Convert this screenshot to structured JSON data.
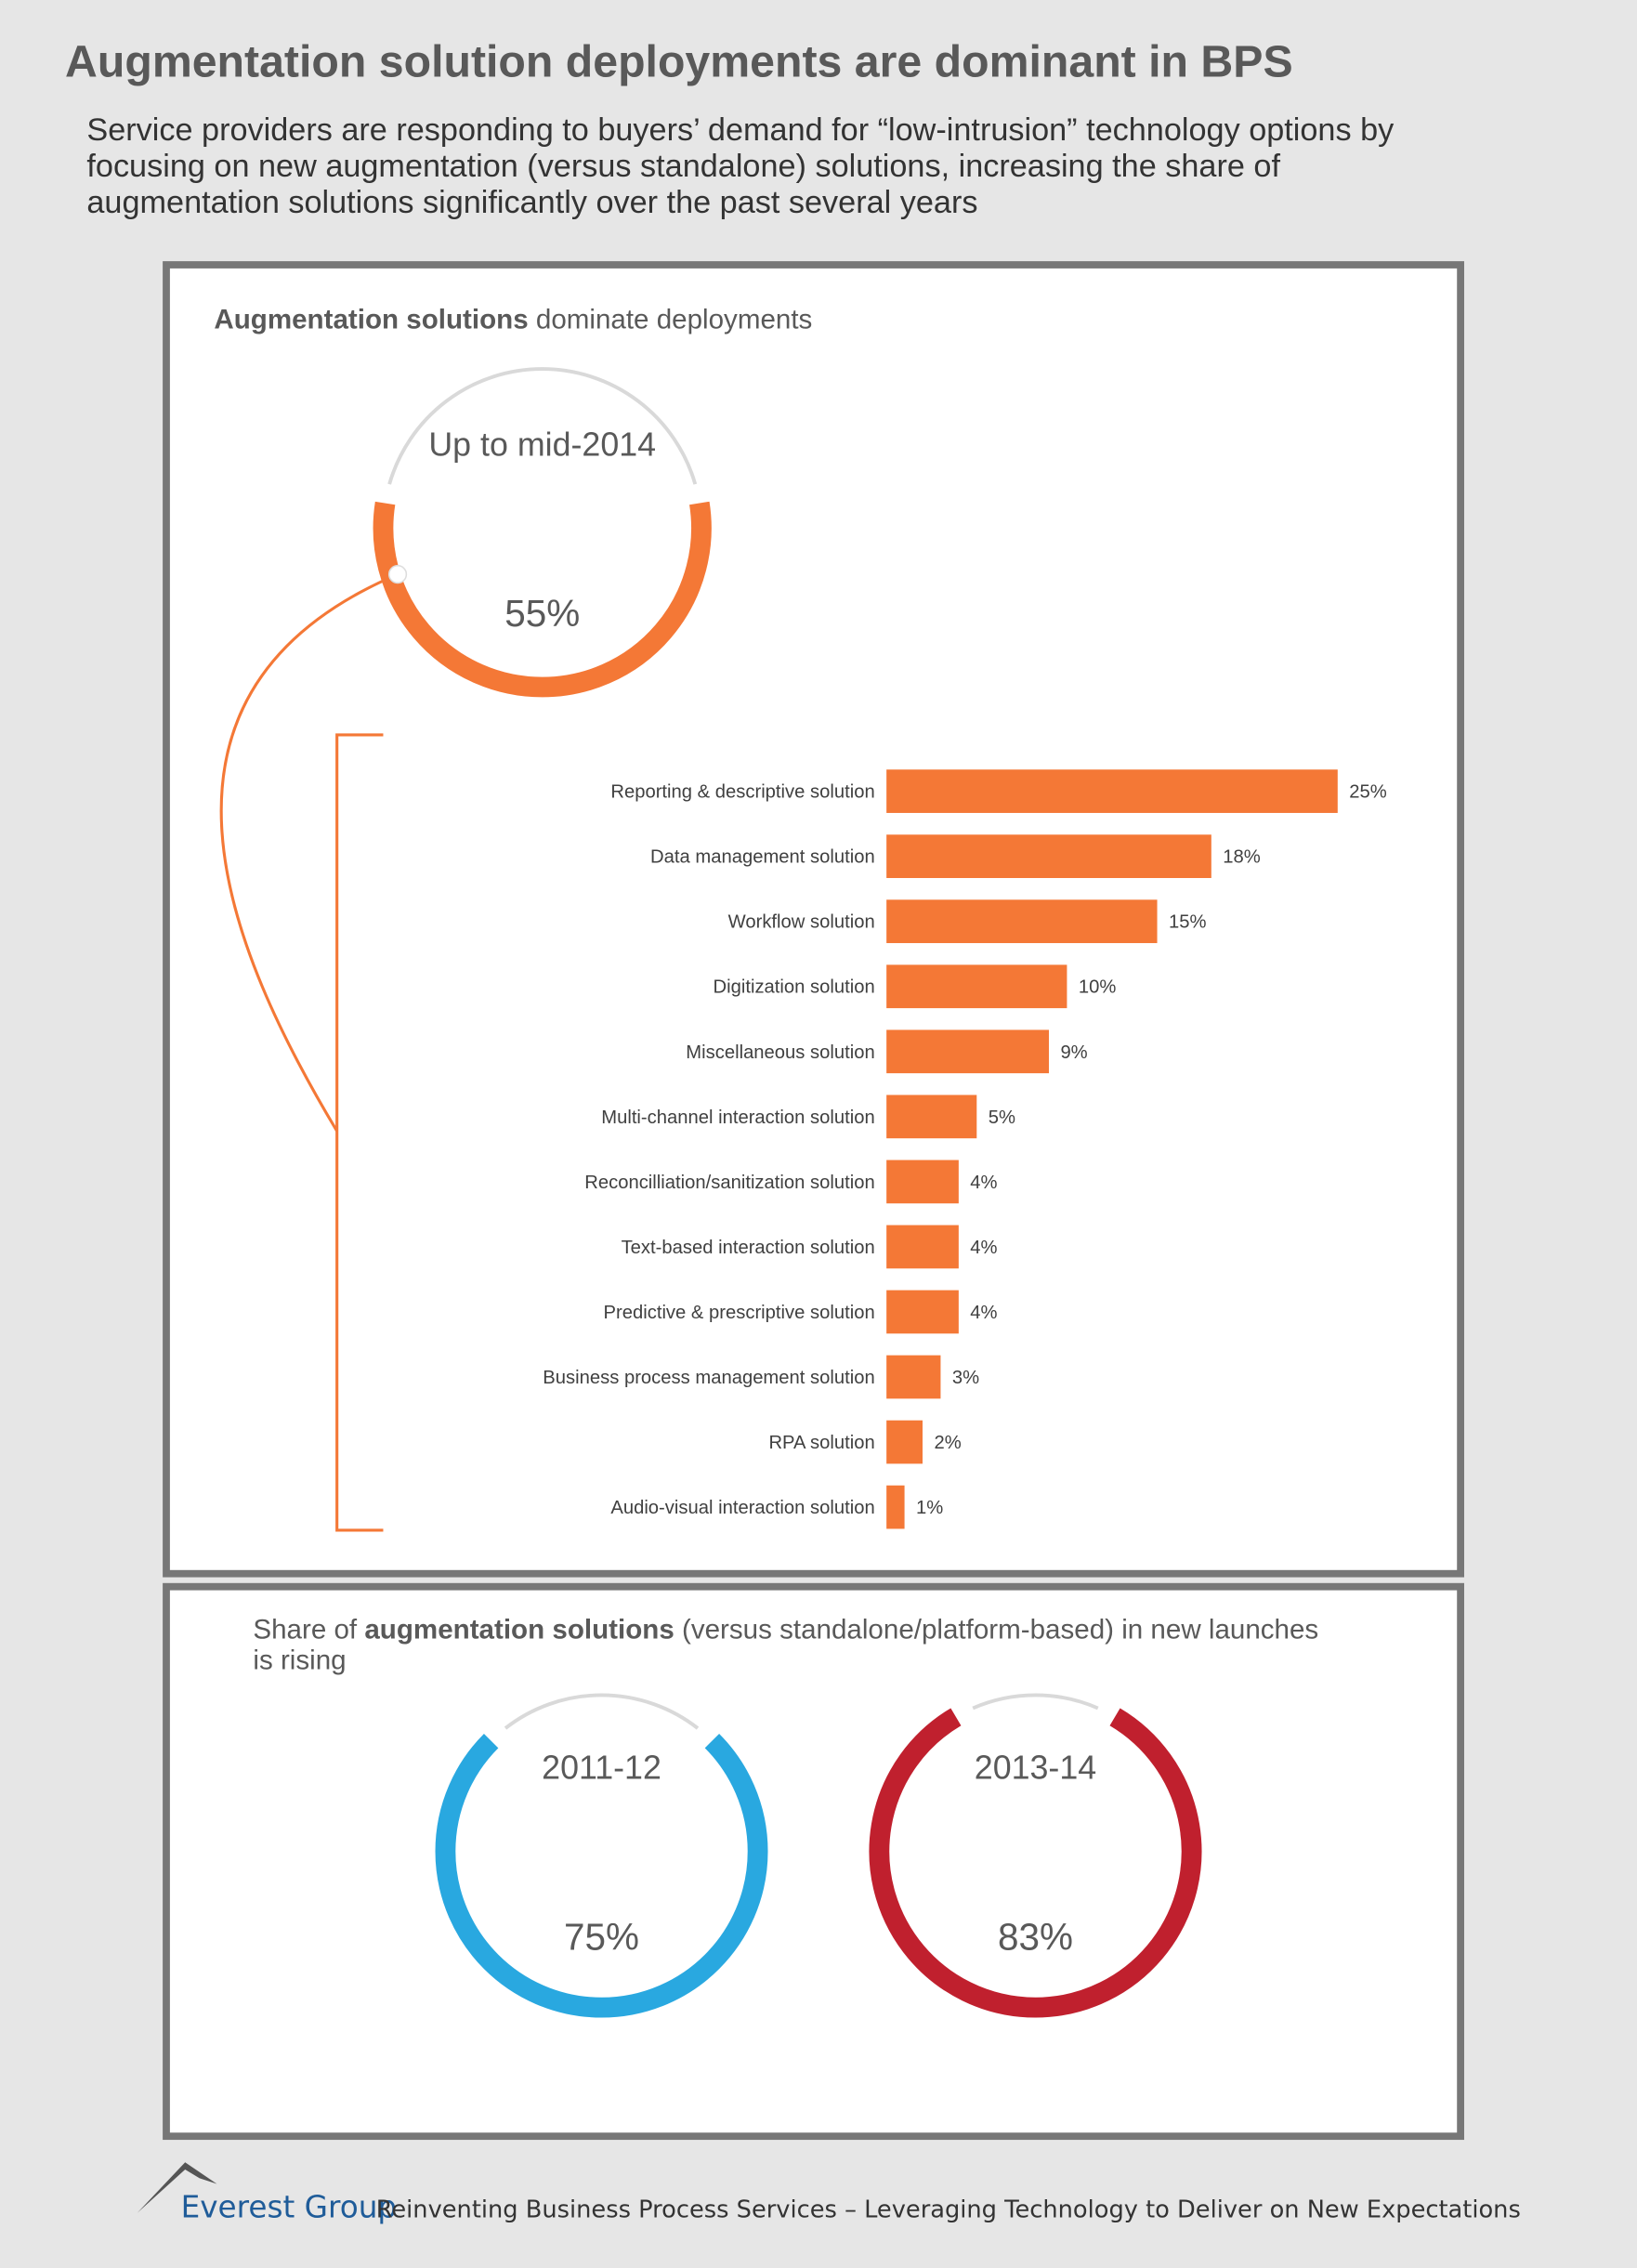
{
  "title": "Augmentation solution deployments are dominant in BPS",
  "subtitle": [
    "Service providers are responding to buyers’ demand for “low-intrusion” technology options by",
    "focusing on new augmentation (versus standalone) solutions, increasing the share of",
    "augmentation solutions significantly over the past several years"
  ],
  "panels": [
    {
      "title": [
        "Augmentation solutions",
        " dominate deployments"
      ]
    },
    {
      "title": [
        "Share of ",
        "augmentation solutions",
        " (versus standalone/platform-based) in new launches",
        "is rising"
      ]
    }
  ],
  "footer": {
    "brand": "Everest Group",
    "text": "Reinventing Business Process Services – Leveraging Technology to Deliver on New Expectations"
  },
  "chart_data": [
    {
      "type": "donut",
      "label": "Up to mid-2014",
      "value": 55,
      "value_label": "55%",
      "color": "#f47836"
    },
    {
      "type": "hbar",
      "categories": [
        "Reporting & descriptive solution",
        "Data management solution",
        "Workflow solution",
        "Digitization solution",
        "Miscellaneous solution",
        "Multi-channel interaction solution",
        "Reconcilliation/sanitization solution",
        "Text-based interaction solution",
        "Predictive & prescriptive solution",
        "Business process management solution",
        "RPA solution",
        "Audio-visual interaction solution"
      ],
      "values": [
        25,
        18,
        15,
        10,
        9,
        5,
        4,
        4,
        4,
        3,
        2,
        1
      ],
      "value_labels": [
        "25%",
        "18%",
        "15%",
        "10%",
        "9%",
        "5%",
        "4%",
        "4%",
        "4%",
        "3%",
        "2%",
        "1%"
      ],
      "color": "#f47836"
    },
    {
      "type": "donut",
      "label": "2011-12",
      "value": 75,
      "value_label": "75%",
      "color": "#29a8e0"
    },
    {
      "type": "donut",
      "label": "2013-14",
      "value": 83,
      "value_label": "83%",
      "color": "#c0202e"
    }
  ]
}
